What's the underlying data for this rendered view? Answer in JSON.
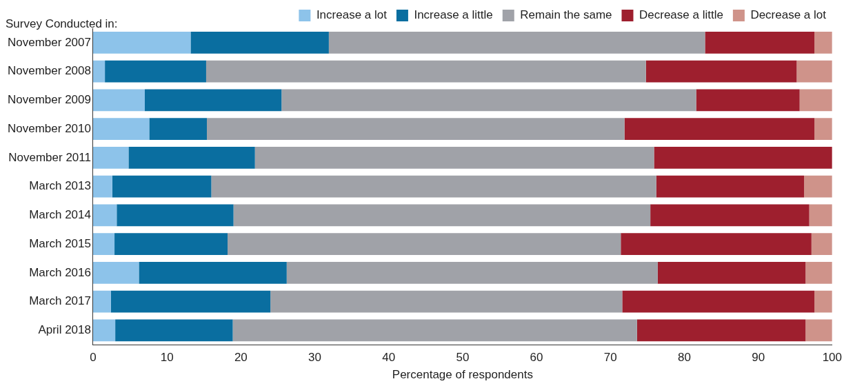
{
  "chart_data": {
    "type": "bar",
    "orientation": "horizontal",
    "stacked": true,
    "ylabel": "Survey Conducted in:",
    "xlabel": "Percentage of respondents",
    "categories": [
      "November 2007",
      "November 2008",
      "November 2009",
      "November 2010",
      "November 2011",
      "March 2013",
      "March 2014",
      "March 2015",
      "March 2016",
      "March 2017",
      "April 2018"
    ],
    "series": [
      {
        "name": "Increase a lot",
        "color": "#8dc3ea",
        "values": [
          13.2,
          1.6,
          7.0,
          7.6,
          4.8,
          2.6,
          3.2,
          2.9,
          6.2,
          2.4,
          3.0
        ]
      },
      {
        "name": "Increase a little",
        "color": "#0a6ea0",
        "values": [
          18.7,
          13.7,
          18.5,
          7.8,
          17.1,
          13.4,
          15.8,
          15.3,
          20.0,
          21.6,
          15.9
        ]
      },
      {
        "name": "Remain the same",
        "color": "#a0a2a8",
        "values": [
          50.9,
          59.5,
          56.1,
          56.5,
          54.0,
          60.2,
          56.4,
          53.2,
          50.2,
          47.6,
          54.7
        ]
      },
      {
        "name": "Decrease a little",
        "color": "#9e1f2e",
        "values": [
          14.8,
          20.4,
          14.0,
          25.7,
          24.1,
          20.0,
          21.5,
          25.8,
          20.0,
          26.0,
          22.8
        ]
      },
      {
        "name": "Decrease a lot",
        "color": "#cf938a",
        "values": [
          2.4,
          4.8,
          4.4,
          2.4,
          0,
          3.8,
          3.1,
          2.8,
          3.6,
          2.4,
          3.6
        ]
      }
    ],
    "xlim": [
      0,
      100
    ],
    "xticks": [
      0,
      10,
      20,
      30,
      40,
      50,
      60,
      70,
      80,
      90,
      100
    ],
    "grid": false,
    "legend": "top right"
  }
}
